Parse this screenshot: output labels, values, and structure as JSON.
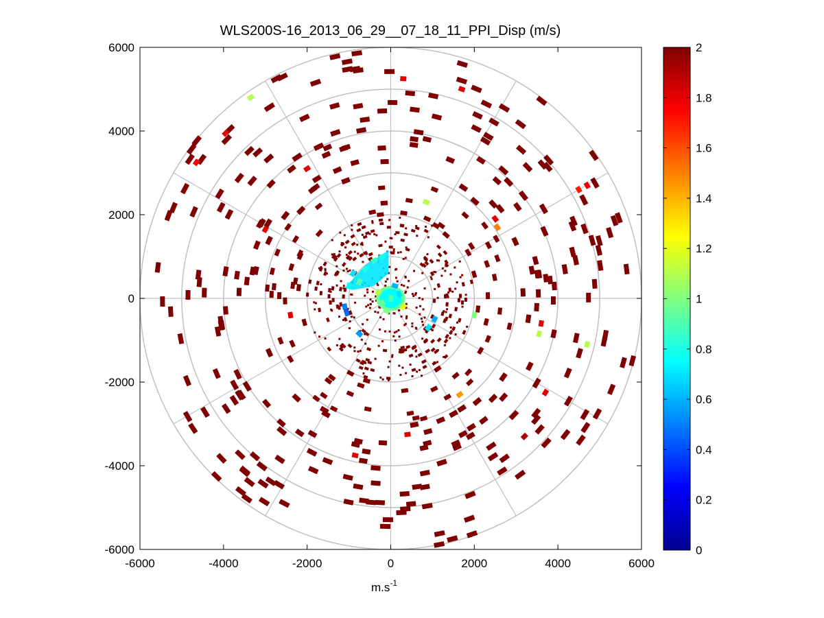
{
  "chart_data": {
    "type": "heatmap",
    "subtype": "polar-ppi",
    "title": "WLS200S-16_2013_06_29__07_18_11_PPI_Disp (m/s)",
    "xlabel_base": "m.s",
    "xlabel_sup": "-1",
    "xlim": [
      -6000,
      6000
    ],
    "ylim": [
      -6000,
      6000
    ],
    "x_ticks": [
      -6000,
      -4000,
      -2000,
      0,
      2000,
      4000,
      6000
    ],
    "y_ticks": [
      -6000,
      -4000,
      -2000,
      0,
      2000,
      4000,
      6000
    ],
    "x_tick_labels": [
      "-6000",
      "-4000",
      "-2000",
      "0",
      "2000",
      "4000",
      "6000"
    ],
    "y_tick_labels": [
      "-6000",
      "-4000",
      "-2000",
      "0",
      "2000",
      "4000",
      "6000"
    ],
    "ring_radii": [
      1000,
      2000,
      3000,
      4000,
      5000,
      6000
    ],
    "spoke_angles_deg": [
      0,
      30,
      60,
      90,
      120,
      150,
      180,
      210,
      240,
      270,
      300,
      330
    ],
    "colorbar": {
      "min": 0,
      "max": 2,
      "ticks": [
        0,
        0.2,
        0.4,
        0.6,
        0.8,
        1,
        1.2,
        1.4,
        1.6,
        1.8,
        2
      ],
      "tick_labels": [
        "0",
        "0.2",
        "0.4",
        "0.6",
        "0.8",
        "1",
        "1.2",
        "1.4",
        "1.6",
        "1.8",
        "2"
      ],
      "colormap": "jet"
    },
    "colors": {
      "grid": "#c0c0c0",
      "axes": "#000000",
      "dominant_cell": "#7f0000"
    },
    "cells": [
      {
        "x": 4700,
        "y": 2700,
        "v": 1.8
      },
      {
        "x": 4500,
        "y": 2600,
        "v": 1.7
      },
      {
        "x": -3950,
        "y": 3950,
        "v": 1.8
      },
      {
        "x": -4650,
        "y": 3250,
        "v": 1.75
      },
      {
        "x": -3350,
        "y": 4800,
        "v": 1.1
      },
      {
        "x": -2000,
        "y": 3100,
        "v": 1.8
      },
      {
        "x": 850,
        "y": 2300,
        "v": 1.1
      },
      {
        "x": 2500,
        "y": 1900,
        "v": 1.8
      },
      {
        "x": 2550,
        "y": 1700,
        "v": 1.5
      },
      {
        "x": -3000,
        "y": 1650,
        "v": 1.8
      },
      {
        "x": 1700,
        "y": 5000,
        "v": 1.8
      },
      {
        "x": 300,
        "y": 5250,
        "v": 1.8
      },
      {
        "x": 3600,
        "y": -600,
        "v": 1.8
      },
      {
        "x": 3550,
        "y": -850,
        "v": 1.1
      },
      {
        "x": 4700,
        "y": -1100,
        "v": 1.1
      },
      {
        "x": -2400,
        "y": -400,
        "v": 1.8
      },
      {
        "x": 1650,
        "y": -2300,
        "v": 1.45
      },
      {
        "x": 3700,
        "y": -2250,
        "v": 1.8
      },
      {
        "x": 400,
        "y": -3250,
        "v": 1.8
      },
      {
        "x": -850,
        "y": -3750,
        "v": 1.8
      },
      {
        "x": 3200,
        "y": -3300,
        "v": 1.9
      },
      {
        "x": 2000,
        "y": -400,
        "v": 1.0
      },
      {
        "x": -600,
        "y": 700,
        "v": 0.8
      },
      {
        "x": -1000,
        "y": 300,
        "v": 0.75
      },
      {
        "x": -900,
        "y": 600,
        "v": 0.7
      },
      {
        "x": -750,
        "y": 400,
        "v": 0.9
      },
      {
        "x": -400,
        "y": 900,
        "v": 0.85
      },
      {
        "x": -200,
        "y": 1000,
        "v": 0.8
      },
      {
        "x": -1100,
        "y": -200,
        "v": 0.5
      },
      {
        "x": -1050,
        "y": -350,
        "v": 0.45
      },
      {
        "x": -750,
        "y": -850,
        "v": 0.55
      },
      {
        "x": 900,
        "y": -700,
        "v": 0.7
      },
      {
        "x": 1050,
        "y": -500,
        "v": 0.6
      },
      {
        "x": 0,
        "y": 0,
        "v": 0.9
      },
      {
        "x": 200,
        "y": 100,
        "v": 0.7
      },
      {
        "x": -200,
        "y": -100,
        "v": 0.95
      },
      {
        "x": 300,
        "y": -200,
        "v": 1.2
      },
      {
        "x": -300,
        "y": 150,
        "v": 1.1
      },
      {
        "x": 100,
        "y": 300,
        "v": 0.6
      },
      {
        "x": -100,
        "y": -300,
        "v": 1.0
      }
    ]
  }
}
